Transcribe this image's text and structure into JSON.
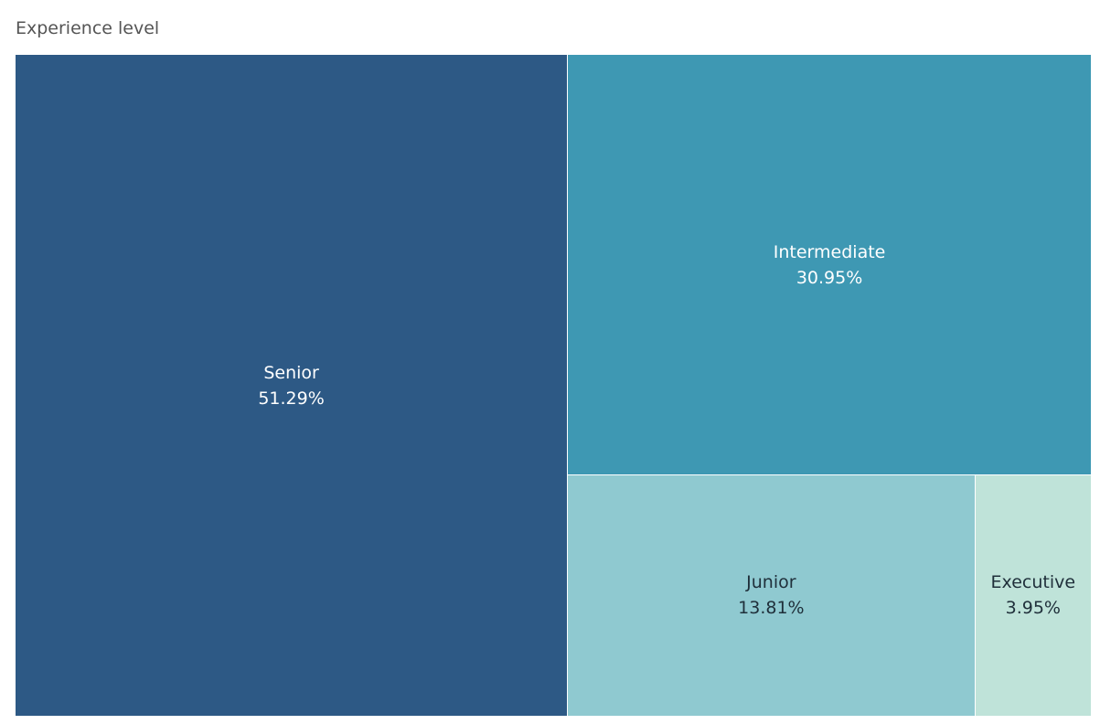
{
  "chart_data": {
    "type": "treemap",
    "title": "Experience level",
    "items": [
      {
        "name": "Senior",
        "value": 51.29,
        "label": "51.29%",
        "color": "#2D5985",
        "text_color": "#ffffff"
      },
      {
        "name": "Intermediate",
        "value": 30.95,
        "label": "30.95%",
        "color": "#3E98B3",
        "text_color": "#ffffff"
      },
      {
        "name": "Junior",
        "value": 13.81,
        "label": "13.81%",
        "color": "#8FC9D0",
        "text_color": "#1f2f3a"
      },
      {
        "name": "Executive",
        "value": 3.95,
        "label": "3.95%",
        "color": "#BFE3D9",
        "text_color": "#1f2f3a"
      }
    ]
  }
}
